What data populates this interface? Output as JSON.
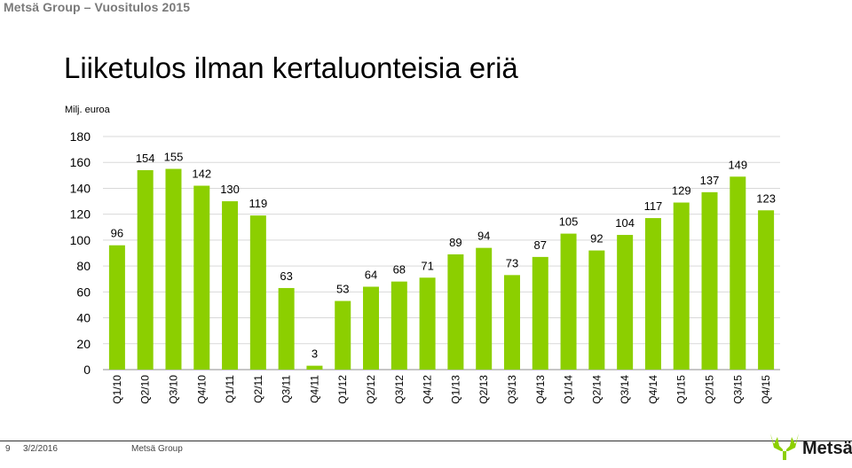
{
  "header": {
    "text": "Metsä Group – Vuositulos 2015"
  },
  "title": "Liiketulos ilman kertaluonteisia eriä",
  "unit_label": "Milj. euroa",
  "footer": {
    "page": "9",
    "date": "3/2/2016",
    "company": "Metsä Group"
  },
  "logo": {
    "word": "Metsä"
  },
  "colors": {
    "bar": "#8ccf00",
    "grid": "#d9d9d9",
    "axis": "#8c8c8c"
  },
  "chart_data": {
    "type": "bar",
    "categories": [
      "Q1/10",
      "Q2/10",
      "Q3/10",
      "Q4/10",
      "Q1/11",
      "Q2/11",
      "Q3/11",
      "Q4/11",
      "Q1/12",
      "Q2/12",
      "Q3/12",
      "Q4/12",
      "Q1/13",
      "Q2/13",
      "Q3/13",
      "Q4/13",
      "Q1/14",
      "Q2/14",
      "Q3/14",
      "Q4/14",
      "Q1/15",
      "Q2/15",
      "Q3/15",
      "Q4/15"
    ],
    "values": [
      96,
      154,
      155,
      142,
      130,
      119,
      63,
      3,
      53,
      64,
      68,
      71,
      89,
      94,
      73,
      87,
      105,
      92,
      104,
      117,
      129,
      137,
      149,
      123
    ],
    "ylim": [
      0,
      180
    ],
    "yticks": [
      0,
      20,
      40,
      60,
      80,
      100,
      120,
      140,
      160,
      180
    ],
    "grid": true
  }
}
